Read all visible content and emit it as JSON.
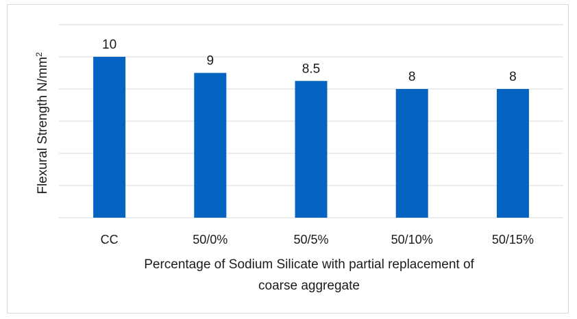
{
  "chart_data": {
    "type": "bar",
    "categories": [
      "CC",
      "50/0%",
      "50/5%",
      "50/10%",
      "50/15%"
    ],
    "values": [
      10,
      9,
      8.5,
      8,
      8
    ],
    "data_labels": [
      "10",
      "9",
      "8.5",
      "8",
      "8"
    ],
    "xlabel_line1": "Percentage of Sodium Silicate with partial replacement of",
    "xlabel_line2": "coarse aggregate",
    "ylabel_main": "Flexural Strength N/mm",
    "ylabel_sup": "2",
    "ylim": [
      0,
      12
    ],
    "grid_step": 2,
    "gridlines": true,
    "y_tick_labels_shown": false,
    "bar_color": "#0563c1",
    "grid_color": "#d9d9d9"
  }
}
